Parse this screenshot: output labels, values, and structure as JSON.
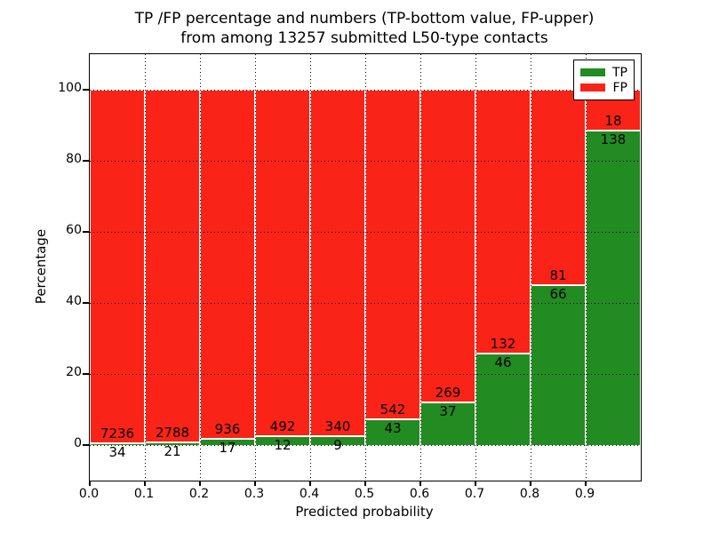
{
  "title": {
    "line1": "TP /FP percentage and numbers (TP-bottom value, FP-upper)",
    "line2": "from among 13257 submitted L50-type contacts"
  },
  "chart_data": {
    "type": "bar",
    "stacked": true,
    "normalization": "each bin scaled to 100%, labels show raw counts",
    "title": "TP /FP percentage and numbers (TP-bottom value, FP-upper) from among 13257 submitted L50-type contacts",
    "xlabel": "Predicted probability",
    "ylabel": "Percentage",
    "total_contacts": 13257,
    "categories": [
      "0.0-0.1",
      "0.1-0.2",
      "0.2-0.3",
      "0.3-0.4",
      "0.4-0.5",
      "0.5-0.6",
      "0.6-0.7",
      "0.7-0.8",
      "0.8-0.9",
      "0.9-1.0"
    ],
    "bin_edges": [
      0.0,
      0.1,
      0.2,
      0.3,
      0.4,
      0.5,
      0.6,
      0.7,
      0.8,
      0.9,
      1.0
    ],
    "series": [
      {
        "name": "TP",
        "color": "#228b22",
        "values": [
          34,
          21,
          17,
          12,
          9,
          43,
          37,
          46,
          66,
          138
        ]
      },
      {
        "name": "FP",
        "color": "#fa2318",
        "values": [
          7236,
          2788,
          936,
          492,
          340,
          542,
          269,
          132,
          81,
          18
        ]
      }
    ],
    "x_tick_labels": [
      "0.0",
      "0.1",
      "0.2",
      "0.3",
      "0.4",
      "0.5",
      "0.6",
      "0.7",
      "0.8",
      "0.9"
    ],
    "y_ticks": [
      0,
      20,
      40,
      60,
      80,
      100
    ],
    "xlim": [
      0.0,
      1.0
    ],
    "ylim": [
      -10,
      110
    ],
    "grid": "dotted, drawn over bars",
    "bar_edge_color": "#ffffff",
    "legend": {
      "position": "upper right",
      "entries": [
        "TP",
        "FP"
      ]
    }
  }
}
